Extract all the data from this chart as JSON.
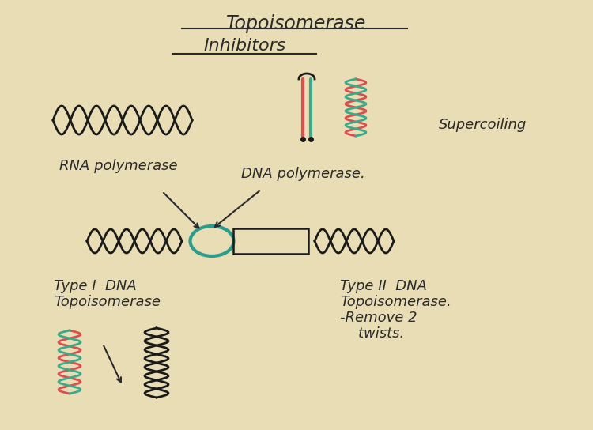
{
  "background_color": "#e8ddb5",
  "title1": "Topoisomerase",
  "title2": "Inhibitors",
  "text_color": "#2a2a2a",
  "labels": {
    "supercoiling": "Supercoiling",
    "rna_pol": "RNA polymerase",
    "dna_pol": "DNA polymerase.",
    "type1_line1": "Type I  DNA",
    "type1_line2": "Topoisomerase",
    "type2_line1": "Type II  DNA",
    "type2_line2": "Topoisomerase.",
    "type2_line3": "-Remove 2",
    "type2_line4": "    twists."
  }
}
